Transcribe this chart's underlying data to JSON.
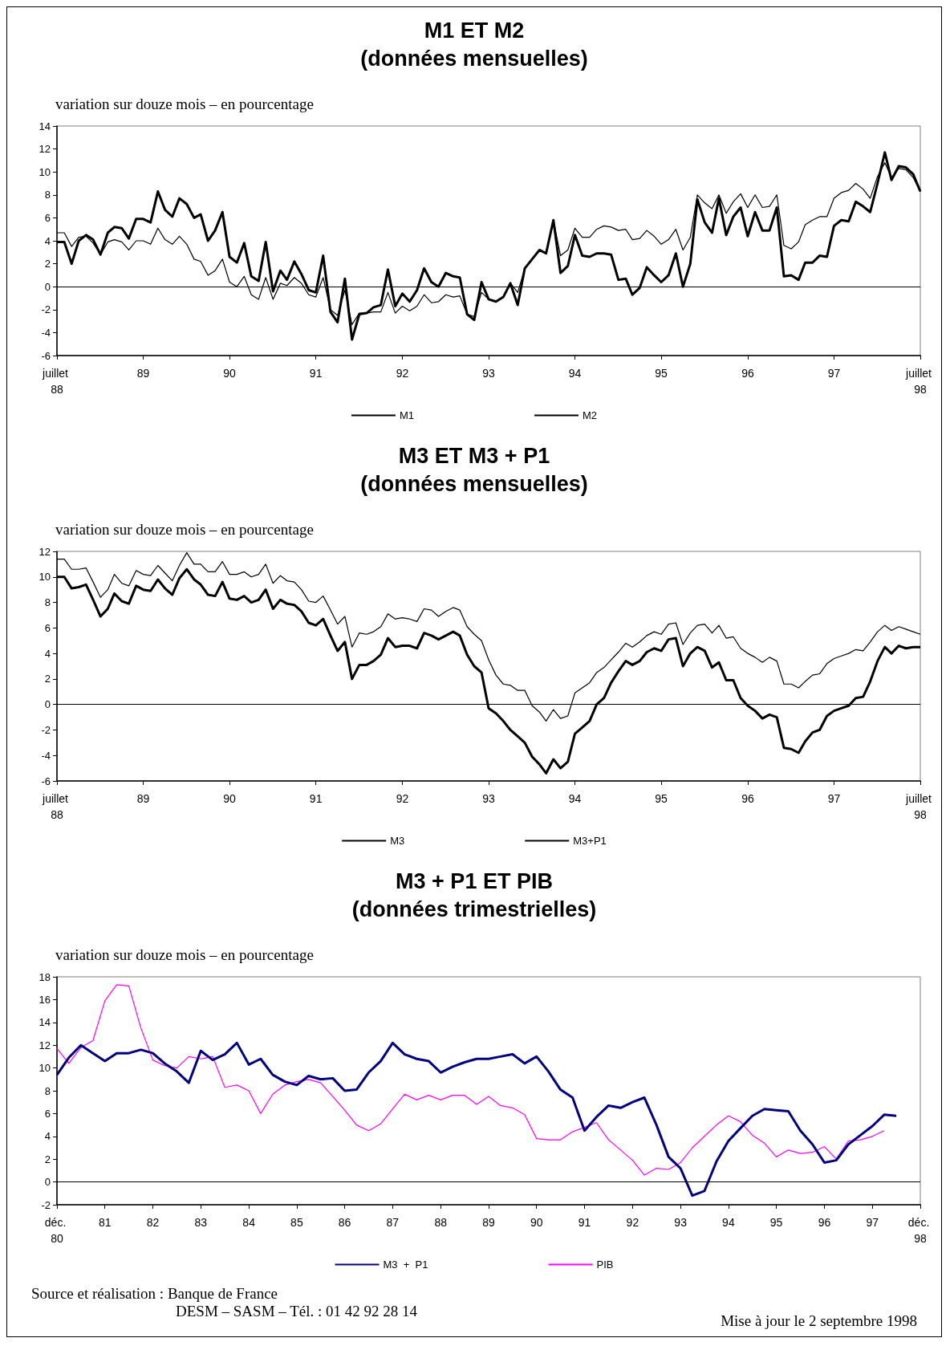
{
  "chart_data": [
    {
      "type": "line",
      "title": "M1 ET M2",
      "subtitle": "(données mensuelles)",
      "ylabel": "variation sur douze mois – en pourcentage",
      "x": [
        "1988-07",
        "1988-08",
        "1988-09",
        "1988-10",
        "1988-11",
        "1988-12",
        "1989-01",
        "1989-02",
        "1989-03",
        "1989-04",
        "1989-05",
        "1989-06",
        "1989-07",
        "1989-08",
        "1989-09",
        "1989-10",
        "1989-11",
        "1989-12",
        "1990-01",
        "1990-02",
        "1990-03",
        "1990-04",
        "1990-05",
        "1990-06",
        "1990-07",
        "1990-08",
        "1990-09",
        "1990-10",
        "1990-11",
        "1990-12",
        "1991-01",
        "1991-02",
        "1991-03",
        "1991-04",
        "1991-05",
        "1991-06",
        "1991-07",
        "1991-08",
        "1991-09",
        "1991-10",
        "1991-11",
        "1991-12",
        "1992-01",
        "1992-02",
        "1992-03",
        "1992-04",
        "1992-05",
        "1992-06",
        "1992-07",
        "1992-08",
        "1992-09",
        "1992-10",
        "1992-11",
        "1992-12",
        "1993-01",
        "1993-02",
        "1993-03",
        "1993-04",
        "1993-05",
        "1993-06",
        "1993-07",
        "1993-08",
        "1993-09",
        "1993-10",
        "1993-11",
        "1993-12",
        "1994-01",
        "1994-02",
        "1994-03",
        "1994-04",
        "1994-05",
        "1994-06",
        "1994-07",
        "1994-08",
        "1994-09",
        "1994-10",
        "1994-11",
        "1994-12",
        "1995-01",
        "1995-02",
        "1995-03",
        "1995-04",
        "1995-05",
        "1995-06",
        "1995-07",
        "1995-08",
        "1995-09",
        "1995-10",
        "1995-11",
        "1995-12",
        "1996-01",
        "1996-02",
        "1996-03",
        "1996-04",
        "1996-05",
        "1996-06",
        "1996-07",
        "1996-08",
        "1996-09",
        "1996-10",
        "1996-11",
        "1996-12",
        "1997-01",
        "1997-02",
        "1997-03",
        "1997-04",
        "1997-05",
        "1997-06",
        "1997-07",
        "1997-08",
        "1997-09",
        "1997-10",
        "1997-11",
        "1997-12",
        "1998-01",
        "1998-02",
        "1998-03",
        "1998-04",
        "1998-05",
        "1998-06",
        "1998-07"
      ],
      "series": [
        {
          "name": "M1",
          "color": "#000000",
          "values": [
            3.9,
            3.9,
            2.0,
            4.0,
            4.5,
            4.1,
            2.8,
            4.7,
            5.2,
            5.1,
            4.2,
            5.9,
            5.9,
            5.6,
            8.3,
            6.7,
            6.1,
            7.7,
            7.2,
            6.0,
            6.3,
            4.0,
            4.9,
            6.5,
            2.6,
            2.1,
            3.8,
            0.9,
            0.5,
            3.9,
            -0.4,
            1.4,
            0.6,
            2.2,
            1.1,
            -0.3,
            -0.5,
            2.7,
            -2.2,
            -3.1,
            0.7,
            -4.6,
            -2.4,
            -2.3,
            -1.8,
            -1.6,
            1.5,
            -1.7,
            -0.6,
            -1.3,
            -0.3,
            1.6,
            0.4,
            0.0,
            1.2,
            0.9,
            0.8,
            -2.4,
            -2.9,
            0.4,
            -1.1,
            -1.3,
            -0.9,
            0.3,
            -1.6,
            1.6,
            2.4,
            3.2,
            2.9,
            5.8,
            1.2,
            1.8,
            4.5,
            2.7,
            2.6,
            2.9,
            2.9,
            2.8,
            0.6,
            0.7,
            -0.7,
            -0.1,
            1.7,
            1.0,
            0.4,
            1.0,
            2.9,
            0.0,
            2.0,
            7.6,
            5.6,
            4.7,
            7.7,
            4.5,
            6.1,
            6.9,
            4.4,
            6.5,
            4.9,
            4.9,
            6.9,
            0.9,
            1.0,
            0.6,
            2.1,
            2.1,
            2.7,
            2.6,
            5.3,
            5.8,
            5.7,
            7.4,
            7.0,
            6.5,
            9.0,
            11.7,
            9.3,
            10.5,
            10.4,
            9.8,
            8.3
          ]
        },
        {
          "name": "M2",
          "color": "#000000",
          "values": [
            4.7,
            4.7,
            3.5,
            4.3,
            4.4,
            3.8,
            2.8,
            3.9,
            4.1,
            3.9,
            3.2,
            4.0,
            4.0,
            3.7,
            5.1,
            4.1,
            3.7,
            4.4,
            3.7,
            2.4,
            2.2,
            1.0,
            1.4,
            2.4,
            0.4,
            0.0,
            0.9,
            -0.7,
            -1.1,
            0.8,
            -1.1,
            0.3,
            0.1,
            0.8,
            0.3,
            -0.7,
            -0.9,
            0.8,
            -2.0,
            -2.5,
            -0.3,
            -3.3,
            -2.3,
            -2.3,
            -2.2,
            -2.2,
            -0.5,
            -2.3,
            -1.7,
            -2.1,
            -1.7,
            -0.7,
            -1.4,
            -1.3,
            -0.7,
            -0.9,
            -0.8,
            -2.4,
            -2.6,
            -0.5,
            -1.1,
            -1.3,
            -0.9,
            0.3,
            -0.5,
            1.6,
            2.4,
            3.2,
            2.9,
            5.8,
            2.7,
            3.2,
            5.1,
            4.3,
            4.3,
            5.0,
            5.3,
            5.2,
            4.9,
            5.0,
            4.1,
            4.2,
            4.9,
            4.4,
            3.7,
            4.1,
            5.0,
            3.2,
            4.3,
            8.0,
            7.3,
            6.8,
            8.0,
            6.4,
            7.4,
            8.1,
            6.9,
            8.0,
            6.9,
            7.0,
            8.0,
            3.6,
            3.3,
            3.9,
            5.4,
            5.8,
            6.1,
            6.1,
            7.7,
            8.2,
            8.4,
            9.0,
            8.5,
            7.7,
            9.6,
            10.8,
            9.5,
            10.3,
            10.2,
            9.5,
            8.3
          ]
        }
      ],
      "xlim": [
        "1988-07",
        "1998-07"
      ],
      "xticks": [
        {
          "value": "1988-07",
          "label": "juillet 88"
        },
        {
          "value": "1989-07",
          "label": "89"
        },
        {
          "value": "1990-07",
          "label": "90"
        },
        {
          "value": "1991-07",
          "label": "91"
        },
        {
          "value": "1992-07",
          "label": "92"
        },
        {
          "value": "1993-07",
          "label": "93"
        },
        {
          "value": "1994-07",
          "label": "94"
        },
        {
          "value": "1995-07",
          "label": "95"
        },
        {
          "value": "1996-07",
          "label": "96"
        },
        {
          "value": "1997-07",
          "label": "97"
        },
        {
          "value": "1998-07",
          "label": "juillet 98"
        }
      ],
      "ylim": [
        -6,
        14
      ],
      "yticks": [
        -6,
        -4,
        -2,
        0,
        2,
        4,
        6,
        8,
        10,
        12,
        14
      ],
      "ref_lines": [
        {
          "axis": "y",
          "value": 0
        }
      ],
      "grid": false,
      "legend": "bottom",
      "marker": "none",
      "line_style": "solid"
    },
    {
      "type": "line",
      "title": "M3 ET M3 + P1",
      "subtitle": "(données mensuelles)",
      "ylabel": "variation sur douze mois – en pourcentage",
      "x": [
        "1988-07",
        "1988-08",
        "1988-09",
        "1988-10",
        "1988-11",
        "1988-12",
        "1989-01",
        "1989-02",
        "1989-03",
        "1989-04",
        "1989-05",
        "1989-06",
        "1989-07",
        "1989-08",
        "1989-09",
        "1989-10",
        "1989-11",
        "1989-12",
        "1990-01",
        "1990-02",
        "1990-03",
        "1990-04",
        "1990-05",
        "1990-06",
        "1990-07",
        "1990-08",
        "1990-09",
        "1990-10",
        "1990-11",
        "1990-12",
        "1991-01",
        "1991-02",
        "1991-03",
        "1991-04",
        "1991-05",
        "1991-06",
        "1991-07",
        "1991-08",
        "1991-09",
        "1991-10",
        "1991-11",
        "1991-12",
        "1992-01",
        "1992-02",
        "1992-03",
        "1992-04",
        "1992-05",
        "1992-06",
        "1992-07",
        "1992-08",
        "1992-09",
        "1992-10",
        "1992-11",
        "1992-12",
        "1993-01",
        "1993-02",
        "1993-03",
        "1993-04",
        "1993-05",
        "1993-06",
        "1993-07",
        "1993-08",
        "1993-09",
        "1993-10",
        "1993-11",
        "1993-12",
        "1994-01",
        "1994-02",
        "1994-03",
        "1994-04",
        "1994-05",
        "1994-06",
        "1994-07",
        "1994-08",
        "1994-09",
        "1994-10",
        "1994-11",
        "1994-12",
        "1995-01",
        "1995-02",
        "1995-03",
        "1995-04",
        "1995-05",
        "1995-06",
        "1995-07",
        "1995-08",
        "1995-09",
        "1995-10",
        "1995-11",
        "1995-12",
        "1996-01",
        "1996-02",
        "1996-03",
        "1996-04",
        "1996-05",
        "1996-06",
        "1996-07",
        "1996-08",
        "1996-09",
        "1996-10",
        "1996-11",
        "1996-12",
        "1997-01",
        "1997-02",
        "1997-03",
        "1997-04",
        "1997-05",
        "1997-06",
        "1997-07",
        "1997-08",
        "1997-09",
        "1997-10",
        "1997-11",
        "1997-12",
        "1998-01",
        "1998-02",
        "1998-03",
        "1998-04",
        "1998-05",
        "1998-06",
        "1998-07"
      ],
      "series": [
        {
          "name": "M3",
          "color": "#000000",
          "values": [
            10.0,
            10.0,
            9.1,
            9.2,
            9.4,
            8.2,
            6.9,
            7.5,
            8.7,
            8.1,
            7.9,
            9.3,
            9.0,
            8.9,
            9.8,
            9.1,
            8.6,
            9.9,
            10.6,
            9.8,
            9.4,
            8.6,
            8.5,
            9.6,
            8.3,
            8.2,
            8.5,
            8.0,
            8.2,
            9.0,
            7.5,
            8.2,
            7.9,
            7.8,
            7.3,
            6.4,
            6.2,
            6.7,
            5.4,
            4.2,
            4.9,
            2.0,
            3.1,
            3.1,
            3.4,
            3.9,
            5.2,
            4.5,
            4.6,
            4.6,
            4.4,
            5.6,
            5.4,
            5.1,
            5.4,
            5.7,
            5.4,
            3.9,
            3.0,
            2.5,
            -0.3,
            -0.7,
            -1.3,
            -2.0,
            -2.5,
            -3.0,
            -4.1,
            -4.7,
            -5.4,
            -4.3,
            -5.0,
            -4.5,
            -2.3,
            -1.8,
            -1.3,
            0.0,
            0.5,
            1.7,
            2.6,
            3.4,
            3.1,
            3.4,
            4.1,
            4.4,
            4.2,
            5.1,
            5.2,
            3.0,
            4.0,
            4.5,
            4.2,
            2.9,
            3.3,
            1.9,
            1.9,
            0.5,
            -0.1,
            -0.5,
            -1.1,
            -0.8,
            -1.0,
            -3.4,
            -3.5,
            -3.8,
            -2.9,
            -2.2,
            -2.0,
            -0.9,
            -0.5,
            -0.3,
            -0.1,
            0.5,
            0.6,
            1.8,
            3.4,
            4.5,
            4.0,
            4.6,
            4.4,
            4.5,
            4.5
          ]
        },
        {
          "name": "M3+P1",
          "color": "#000000",
          "values": [
            11.4,
            11.4,
            10.6,
            10.6,
            10.7,
            9.6,
            8.4,
            9.0,
            10.2,
            9.5,
            9.3,
            10.5,
            10.2,
            10.1,
            10.9,
            10.3,
            9.7,
            10.9,
            11.9,
            11.0,
            11.0,
            10.4,
            10.4,
            11.2,
            10.2,
            10.2,
            10.4,
            10.0,
            10.2,
            11.0,
            9.5,
            10.1,
            9.7,
            9.6,
            9.0,
            8.1,
            8.0,
            8.5,
            7.4,
            6.3,
            6.9,
            4.5,
            5.6,
            5.5,
            5.7,
            6.1,
            7.1,
            6.7,
            6.8,
            6.7,
            6.5,
            7.5,
            7.4,
            6.9,
            7.3,
            7.6,
            7.4,
            6.1,
            5.5,
            5.0,
            3.5,
            2.3,
            1.6,
            1.5,
            1.1,
            1.1,
            -0.1,
            -0.6,
            -1.3,
            -0.4,
            -1.1,
            -0.9,
            0.9,
            1.3,
            1.7,
            2.5,
            2.9,
            3.5,
            4.1,
            4.8,
            4.5,
            4.9,
            5.4,
            5.7,
            5.5,
            6.3,
            6.4,
            4.7,
            5.6,
            6.2,
            6.3,
            5.6,
            6.2,
            5.2,
            5.3,
            4.4,
            4.0,
            3.7,
            3.3,
            3.7,
            3.4,
            1.6,
            1.6,
            1.3,
            1.8,
            2.3,
            2.4,
            3.2,
            3.6,
            3.8,
            4.0,
            4.3,
            4.2,
            4.9,
            5.7,
            6.2,
            5.8,
            6.1,
            5.9,
            5.7,
            5.5
          ]
        }
      ],
      "xlim": [
        "1988-07",
        "1998-07"
      ],
      "xticks": [
        {
          "value": "1988-07",
          "label": "juillet 88"
        },
        {
          "value": "1989-07",
          "label": "89"
        },
        {
          "value": "1990-07",
          "label": "90"
        },
        {
          "value": "1991-07",
          "label": "91"
        },
        {
          "value": "1992-07",
          "label": "92"
        },
        {
          "value": "1993-07",
          "label": "93"
        },
        {
          "value": "1994-07",
          "label": "94"
        },
        {
          "value": "1995-07",
          "label": "95"
        },
        {
          "value": "1996-07",
          "label": "96"
        },
        {
          "value": "1997-07",
          "label": "97"
        },
        {
          "value": "1998-07",
          "label": "juillet 98"
        }
      ],
      "ylim": [
        -6,
        12
      ],
      "yticks": [
        -6,
        -4,
        -2,
        0,
        2,
        4,
        6,
        8,
        10,
        12
      ],
      "ref_lines": [
        {
          "axis": "y",
          "value": 0
        }
      ],
      "grid": false,
      "legend": "bottom",
      "marker": "none",
      "line_style": "solid"
    },
    {
      "type": "line",
      "title": "M3 + P1 ET PIB",
      "subtitle": "(données trimestrielles)",
      "ylabel": "variation sur douze mois – en pourcentage",
      "x": [
        "1980-12",
        "1981-03",
        "1981-06",
        "1981-09",
        "1981-12",
        "1982-03",
        "1982-06",
        "1982-09",
        "1982-12",
        "1983-03",
        "1983-06",
        "1983-09",
        "1983-12",
        "1984-03",
        "1984-06",
        "1984-09",
        "1984-12",
        "1985-03",
        "1985-06",
        "1985-09",
        "1985-12",
        "1986-03",
        "1986-06",
        "1986-09",
        "1986-12",
        "1987-03",
        "1987-06",
        "1987-09",
        "1987-12",
        "1988-03",
        "1988-06",
        "1988-09",
        "1988-12",
        "1989-03",
        "1989-06",
        "1989-09",
        "1989-12",
        "1990-03",
        "1990-06",
        "1990-09",
        "1990-12",
        "1991-03",
        "1991-06",
        "1991-09",
        "1991-12",
        "1992-03",
        "1992-06",
        "1992-09",
        "1992-12",
        "1993-03",
        "1993-06",
        "1993-09",
        "1993-12",
        "1994-03",
        "1994-06",
        "1994-09",
        "1994-12",
        "1995-03",
        "1995-06",
        "1995-09",
        "1995-12",
        "1996-03",
        "1996-06",
        "1996-09",
        "1996-12",
        "1997-03",
        "1997-06",
        "1997-09",
        "1997-12",
        "1998-03",
        "1998-06"
      ],
      "series": [
        {
          "name": "M3  +  P1",
          "color": "#000080",
          "values": [
            9.4,
            10.9,
            12.0,
            11.3,
            10.6,
            11.3,
            11.3,
            11.6,
            11.3,
            10.4,
            9.7,
            8.7,
            11.5,
            10.7,
            11.2,
            12.2,
            10.3,
            10.8,
            9.4,
            8.8,
            8.5,
            9.3,
            9.0,
            9.1,
            8.0,
            8.1,
            9.6,
            10.6,
            12.2,
            11.2,
            10.8,
            10.6,
            9.6,
            10.1,
            10.5,
            10.8,
            10.8,
            11.0,
            11.2,
            10.4,
            11.0,
            9.7,
            8.1,
            7.4,
            4.5,
            5.7,
            6.7,
            6.5,
            7.0,
            7.4,
            5.0,
            2.2,
            1.2,
            -1.2,
            -0.8,
            1.8,
            3.6,
            4.7,
            5.8,
            6.4,
            6.3,
            6.2,
            4.5,
            3.3,
            1.7,
            1.9,
            3.3,
            4.1,
            4.9,
            5.9,
            5.8
          ]
        },
        {
          "name": "PIB",
          "color": "#ff00ff",
          "values": [
            11.7,
            10.4,
            11.8,
            12.4,
            15.9,
            17.3,
            17.2,
            13.5,
            10.7,
            10.2,
            10.0,
            11.0,
            10.8,
            11.0,
            8.3,
            8.5,
            8.0,
            6.0,
            7.7,
            8.5,
            8.8,
            9.0,
            8.7,
            7.5,
            6.3,
            5.0,
            4.5,
            5.1,
            6.4,
            7.7,
            7.2,
            7.6,
            7.2,
            7.6,
            7.6,
            6.8,
            7.5,
            6.7,
            6.5,
            5.9,
            3.8,
            3.7,
            3.7,
            4.4,
            4.8,
            5.2,
            3.7,
            2.8,
            1.9,
            0.6,
            1.2,
            1.1,
            1.7,
            3.0,
            4.0,
            5.0,
            5.8,
            5.3,
            4.1,
            3.4,
            2.2,
            2.8,
            2.5,
            2.6,
            3.1,
            2.0,
            3.6,
            3.7,
            4.0,
            4.5,
            null
          ]
        }
      ],
      "xlim": [
        "1980-12",
        "1998-12"
      ],
      "xticks": [
        {
          "value": "1980-12",
          "label": "déc. 80"
        },
        {
          "value": "1981-12",
          "label": "81"
        },
        {
          "value": "1982-12",
          "label": "82"
        },
        {
          "value": "1983-12",
          "label": "83"
        },
        {
          "value": "1984-12",
          "label": "84"
        },
        {
          "value": "1985-12",
          "label": "85"
        },
        {
          "value": "1986-12",
          "label": "86"
        },
        {
          "value": "1987-12",
          "label": "87"
        },
        {
          "value": "1988-12",
          "label": "88"
        },
        {
          "value": "1989-12",
          "label": "89"
        },
        {
          "value": "1990-12",
          "label": "90"
        },
        {
          "value": "1991-12",
          "label": "91"
        },
        {
          "value": "1992-12",
          "label": "92"
        },
        {
          "value": "1993-12",
          "label": "93"
        },
        {
          "value": "1994-12",
          "label": "94"
        },
        {
          "value": "1995-12",
          "label": "95"
        },
        {
          "value": "1996-12",
          "label": "96"
        },
        {
          "value": "1997-12",
          "label": "97"
        },
        {
          "value": "1998-12",
          "label": "déc. 98"
        }
      ],
      "ylim": [
        -2,
        18
      ],
      "yticks": [
        -2,
        0,
        2,
        4,
        6,
        8,
        10,
        12,
        14,
        16,
        18
      ],
      "ref_lines": [
        {
          "axis": "y",
          "value": 0
        }
      ],
      "grid": false,
      "legend": "bottom",
      "marker": "none",
      "line_style": "solid",
      "annotations": [
        "Source et réalisation :  Banque de France",
        "DESM – SASM – Tél. : 01 42 92 28 14",
        "Mise à jour le 2 septembre 1998"
      ]
    }
  ]
}
